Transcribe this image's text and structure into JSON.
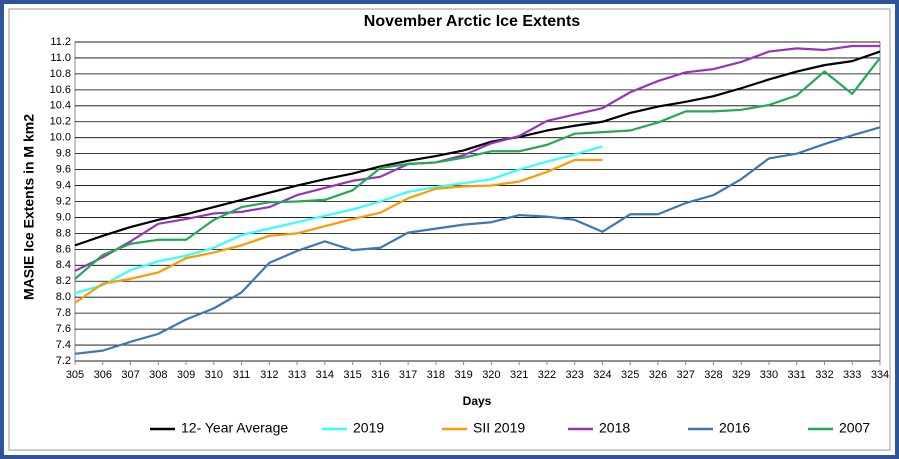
{
  "chart_data": {
    "type": "line",
    "title": "November Arctic Ice Extents",
    "x_label": "Days",
    "y_label": "MASIE Ice Extents in M km2",
    "x": [
      305,
      306,
      307,
      308,
      309,
      310,
      311,
      312,
      313,
      314,
      315,
      316,
      317,
      318,
      319,
      320,
      321,
      322,
      323,
      324,
      325,
      326,
      327,
      328,
      329,
      330,
      331,
      332,
      333,
      334
    ],
    "xlim": [
      305,
      334
    ],
    "xticks": [
      305,
      306,
      307,
      308,
      309,
      310,
      311,
      312,
      313,
      314,
      315,
      316,
      317,
      318,
      319,
      320,
      321,
      322,
      323,
      324,
      325,
      326,
      327,
      328,
      329,
      330,
      331,
      332,
      333,
      334
    ],
    "ylim": [
      7.2,
      11.2
    ],
    "yticks": [
      7.2,
      7.4,
      7.6,
      7.8,
      {
        "value": 8,
        "label": "8.0"
      },
      8.2,
      8.4,
      8.6,
      8.8,
      {
        "value": 9,
        "label": "9.0"
      },
      9.2,
      9.4,
      9.6,
      9.8,
      {
        "value": 10,
        "label": "10.0"
      },
      10.2,
      10.4,
      10.6,
      10.8,
      {
        "value": 11,
        "label": "11.0"
      },
      11.2
    ],
    "grid": true,
    "legend": "bottom",
    "series": [
      {
        "name": "12- Year Average",
        "color": "#000000",
        "values": [
          8.65,
          8.77,
          8.88,
          8.97,
          9.04,
          9.13,
          9.22,
          9.31,
          9.4,
          9.48,
          9.55,
          9.64,
          9.71,
          9.77,
          9.84,
          9.95,
          10.01,
          10.09,
          10.15,
          10.2,
          10.31,
          10.39,
          10.45,
          10.52,
          10.62,
          10.73,
          10.83,
          10.91,
          10.96,
          11.08
        ]
      },
      {
        "name": "2019",
        "color": "#33ffff",
        "values": [
          8.05,
          8.15,
          8.34,
          8.45,
          8.52,
          8.62,
          8.78,
          8.86,
          8.94,
          9.02,
          9.1,
          9.2,
          9.32,
          9.38,
          9.43,
          9.48,
          9.6,
          9.7,
          9.79,
          9.89,
          null,
          null,
          null,
          null,
          null,
          null,
          null,
          null,
          null,
          null
        ]
      },
      {
        "name": "SII 2019",
        "color": "#ff9900",
        "values": [
          7.93,
          8.17,
          8.23,
          8.31,
          8.49,
          8.56,
          8.65,
          8.77,
          8.8,
          8.89,
          8.98,
          9.06,
          9.24,
          9.36,
          9.39,
          9.4,
          9.45,
          9.57,
          9.72,
          9.72,
          null,
          null,
          null,
          null,
          null,
          null,
          null,
          null,
          null,
          null
        ]
      },
      {
        "name": "2018",
        "color": "#9933bb",
        "values": [
          8.33,
          8.5,
          8.7,
          8.92,
          8.98,
          9.05,
          9.07,
          9.13,
          9.28,
          9.37,
          9.46,
          9.51,
          9.67,
          9.69,
          9.78,
          9.93,
          10.02,
          10.21,
          10.29,
          10.37,
          10.57,
          10.71,
          10.82,
          10.86,
          10.95,
          11.08,
          11.12,
          11.1,
          11.15,
          11.15
        ]
      },
      {
        "name": "2016",
        "color": "#3a78b8",
        "values": [
          7.29,
          7.33,
          7.44,
          7.54,
          7.72,
          7.86,
          8.06,
          8.43,
          8.58,
          8.7,
          8.59,
          8.62,
          8.81,
          8.86,
          8.91,
          8.94,
          9.03,
          9.01,
          8.97,
          8.82,
          9.04,
          9.04,
          9.18,
          9.28,
          9.48,
          9.74,
          9.8,
          9.92,
          10.03,
          10.13
        ]
      },
      {
        "name": "2007",
        "color": "#22aa55",
        "values": [
          8.23,
          8.53,
          8.67,
          8.72,
          8.72,
          8.97,
          9.13,
          9.19,
          9.2,
          9.22,
          9.34,
          9.62,
          9.67,
          9.69,
          9.75,
          9.83,
          9.83,
          9.91,
          10.05,
          10.07,
          10.09,
          10.19,
          10.33,
          10.33,
          10.35,
          10.41,
          10.53,
          10.83,
          10.55,
          11.0
        ]
      }
    ]
  }
}
